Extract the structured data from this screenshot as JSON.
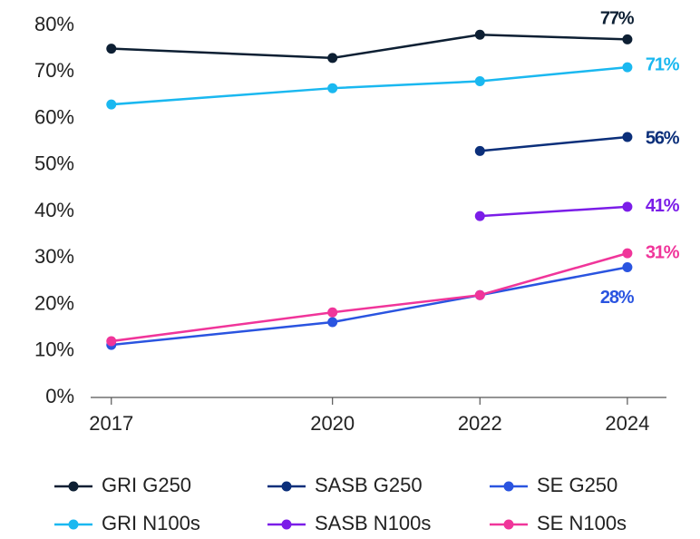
{
  "chart_data": {
    "type": "line",
    "x": [
      2017,
      2020,
      2022,
      2024
    ],
    "xlim": [
      2016.72,
      2024.53
    ],
    "xticks": [
      2017,
      2020,
      2022,
      2024
    ],
    "ylim": [
      0,
      80
    ],
    "yticks": [
      {
        "value": 0,
        "label": "0%"
      },
      {
        "value": 10,
        "label": "10%"
      },
      {
        "value": 20,
        "label": "20%"
      },
      {
        "value": 30,
        "label": "30%"
      },
      {
        "value": 40,
        "label": "40%"
      },
      {
        "value": 50,
        "label": "50%"
      },
      {
        "value": 60,
        "label": "60%"
      },
      {
        "value": 70,
        "label": "70%"
      },
      {
        "value": 80,
        "label": "80%"
      }
    ],
    "grid": false,
    "legend": "bottom",
    "series": [
      {
        "name": "GRI G250",
        "color": "#0d1f33",
        "values": [
          75,
          73,
          78,
          77
        ],
        "value_labels": [
          null,
          null,
          null,
          "77%"
        ]
      },
      {
        "name": "SASB G250",
        "color": "#0b2f7a",
        "values": [
          null,
          null,
          53,
          56
        ],
        "value_labels": [
          null,
          null,
          null,
          "56%"
        ]
      },
      {
        "name": "SE G250",
        "color": "#2a54e0",
        "values": [
          11.3,
          16.2,
          22,
          28
        ],
        "value_labels": [
          null,
          null,
          null,
          "28%"
        ]
      },
      {
        "name": "GRI N100s",
        "color": "#1ab8f0",
        "values": [
          63,
          66.5,
          68,
          71
        ],
        "value_labels": [
          null,
          null,
          null,
          "71%"
        ]
      },
      {
        "name": "SASB N100s",
        "color": "#7b1de8",
        "values": [
          null,
          null,
          39,
          41
        ],
        "value_labels": [
          null,
          null,
          null,
          "41%"
        ]
      },
      {
        "name": "SE N100s",
        "color": "#f0359a",
        "values": [
          12.1,
          18.3,
          22,
          31
        ],
        "value_labels": [
          null,
          null,
          null,
          "31%"
        ]
      }
    ]
  }
}
